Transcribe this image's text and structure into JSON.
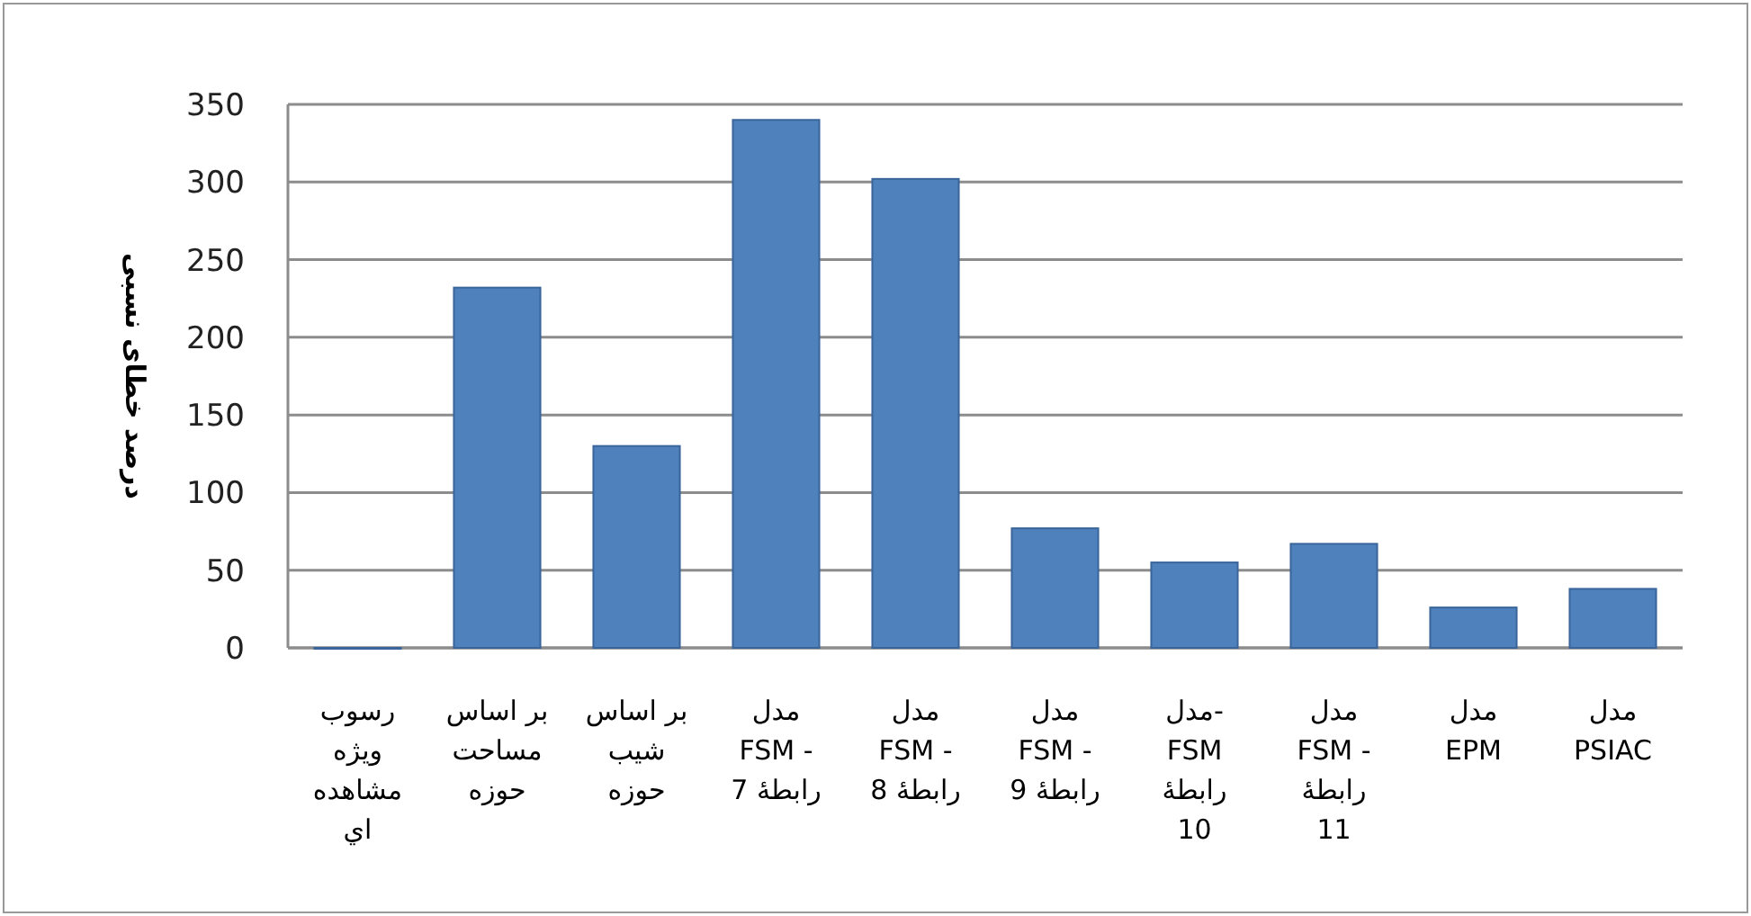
{
  "chart_data": {
    "type": "bar",
    "ylabel": "درصد خطای نسبی",
    "categories": [
      "رسوب\nويژه\nمشاهده\nاي",
      "بر اساس\nمساحت\nحوزه",
      "بر اساس\nشيب\nحوزه",
      "مدل\nFSM -\nرابطهٔ 7",
      "مدل\nFSM -\nرابطهٔ 8",
      "مدل\nFSM -\nرابطهٔ 9",
      "مدل-\nFSM\nرابطهٔ\n10",
      "مدل\nFSM -\nرابطهٔ\n11",
      "مدل\nEPM",
      "مدل\nPSIAC"
    ],
    "values": [
      0,
      232,
      130,
      340,
      302,
      77,
      55,
      67,
      26,
      38
    ],
    "color": "#4f81bd",
    "ylim": [
      0,
      350
    ],
    "yticks": [
      0,
      50,
      100,
      150,
      200,
      250,
      300,
      350
    ],
    "grid": "y"
  }
}
